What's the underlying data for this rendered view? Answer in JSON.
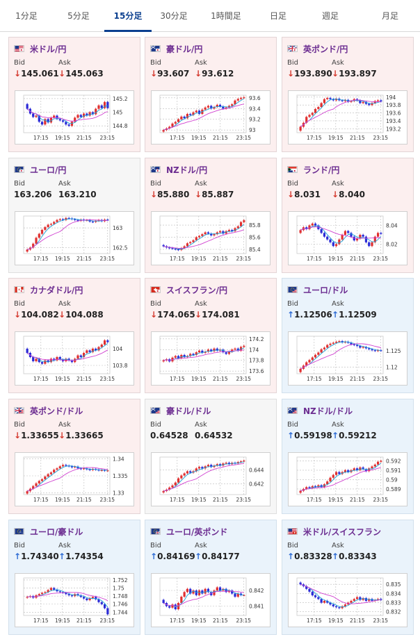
{
  "tabs": [
    {
      "label": "1分足",
      "active": false
    },
    {
      "label": "5分足",
      "active": false
    },
    {
      "label": "15分足",
      "active": true
    },
    {
      "label": "30分足",
      "active": false
    },
    {
      "label": "1時間足",
      "active": false
    },
    {
      "label": "日足",
      "active": false
    },
    {
      "label": "週足",
      "active": false
    },
    {
      "label": "月足",
      "active": false
    }
  ],
  "colors": {
    "down_arrow": "#d43a2f",
    "up_arrow": "#2f6cd4",
    "title": "#6c2d91",
    "candle_up": "#e03030",
    "candle_down": "#2a2ad6",
    "ma_short": "#1da3d6",
    "ma_long": "#d040d0"
  },
  "bid_label": "Bid",
  "ask_label": "Ask",
  "cards": [
    {
      "pair": "米ドル/円",
      "flag": "flag-us-jp",
      "trend": "down",
      "bid": "145.061",
      "ask": "145.063",
      "chart_data": {
        "type": "candlestick",
        "x_ticks": [
          "17:15",
          "19:15",
          "21:15",
          "23:15"
        ],
        "y_ticks": [
          "145.2",
          "145",
          "144.8"
        ],
        "ylim": [
          144.7,
          145.25
        ],
        "close": [
          145.05,
          144.98,
          144.93,
          144.95,
          144.86,
          144.82,
          144.9,
          144.85,
          144.92,
          144.95,
          144.9,
          144.88,
          144.86,
          144.82,
          144.8,
          144.86,
          144.92,
          144.96,
          144.93,
          144.98,
          144.95,
          145.0,
          144.97,
          145.05,
          145.1,
          145.06,
          145.15,
          145.06
        ]
      }
    },
    {
      "pair": "豪ドル/円",
      "flag": "flag-au-jp",
      "trend": "down",
      "bid": "93.607",
      "ask": "93.612",
      "chart_data": {
        "type": "candlestick",
        "x_ticks": [
          "17:15",
          "19:15",
          "21:15",
          "23:15"
        ],
        "y_ticks": [
          "93.6",
          "93.4",
          "93.2",
          "93"
        ],
        "ylim": [
          92.95,
          93.65
        ],
        "close": [
          93.0,
          93.03,
          93.06,
          93.12,
          93.15,
          93.2,
          93.25,
          93.22,
          93.3,
          93.28,
          93.33,
          93.36,
          93.3,
          93.38,
          93.42,
          93.45,
          93.4,
          93.43,
          93.47,
          93.44,
          93.4,
          93.42,
          93.45,
          93.48,
          93.55,
          93.58,
          93.6,
          93.61
        ]
      }
    },
    {
      "pair": "英ポンド/円",
      "flag": "flag-gb-jp",
      "trend": "down",
      "bid": "193.890",
      "ask": "193.897",
      "chart_data": {
        "type": "candlestick",
        "x_ticks": [
          "17:15",
          "19:15",
          "21:15",
          "23:15"
        ],
        "y_ticks": [
          "194",
          "193.8",
          "193.6",
          "193.4",
          "193.2"
        ],
        "ylim": [
          193.1,
          194.05
        ],
        "close": [
          193.25,
          193.35,
          193.5,
          193.55,
          193.6,
          193.7,
          193.75,
          193.85,
          193.95,
          193.98,
          193.95,
          193.92,
          193.96,
          193.92,
          193.9,
          193.93,
          193.88,
          193.9,
          193.95,
          193.92,
          193.85,
          193.88,
          193.83,
          193.8,
          193.85,
          193.9,
          193.92,
          193.89
        ]
      }
    },
    {
      "pair": "ユーロ/円",
      "flag": "flag-eu-jp",
      "trend": "none",
      "bid": "163.206",
      "ask": "163.210",
      "chart_data": {
        "type": "candlestick",
        "x_ticks": [
          "17:15",
          "19:15",
          "21:15",
          "23:15"
        ],
        "y_ticks": [
          "163",
          "162.5"
        ],
        "ylim": [
          162.35,
          163.3
        ],
        "close": [
          162.45,
          162.5,
          162.6,
          162.75,
          162.85,
          162.95,
          163.02,
          163.08,
          163.1,
          163.15,
          163.2,
          163.22,
          163.2,
          163.25,
          163.24,
          163.22,
          163.2,
          163.18,
          163.21,
          163.19,
          163.2,
          163.16,
          163.15,
          163.18,
          163.2,
          163.17,
          163.21,
          163.2
        ]
      }
    },
    {
      "pair": "NZドル/円",
      "flag": "flag-nz-jp",
      "trend": "down",
      "bid": "85.880",
      "ask": "85.887",
      "chart_data": {
        "type": "candlestick",
        "x_ticks": [
          "17:15",
          "19:15",
          "21:15",
          "23:15"
        ],
        "y_ticks": [
          "85.8",
          "85.6",
          "85.4"
        ],
        "ylim": [
          85.33,
          85.95
        ],
        "close": [
          85.45,
          85.43,
          85.42,
          85.41,
          85.4,
          85.39,
          85.42,
          85.45,
          85.5,
          85.52,
          85.55,
          85.6,
          85.62,
          85.65,
          85.68,
          85.66,
          85.63,
          85.65,
          85.68,
          85.7,
          85.66,
          85.7,
          85.72,
          85.7,
          85.75,
          85.78,
          85.85,
          85.88
        ]
      }
    },
    {
      "pair": "ランド/円",
      "flag": "flag-za-jp",
      "trend": "down",
      "bid": "8.031",
      "ask": "8.040",
      "chart_data": {
        "type": "candlestick",
        "x_ticks": [
          "17:15",
          "19:15",
          "21:15",
          "23:15"
        ],
        "y_ticks": [
          "8.04",
          "8.02"
        ],
        "ylim": [
          8.01,
          8.05
        ],
        "close": [
          8.035,
          8.038,
          8.036,
          8.04,
          8.042,
          8.04,
          8.036,
          8.032,
          8.028,
          8.025,
          8.022,
          8.018,
          8.02,
          8.025,
          8.03,
          8.034,
          8.032,
          8.028,
          8.024,
          8.026,
          8.03,
          8.028,
          8.022,
          8.018,
          8.022,
          8.028,
          8.032,
          8.031
        ]
      }
    },
    {
      "pair": "カナダドル/円",
      "flag": "flag-ca-jp",
      "trend": "down",
      "bid": "104.082",
      "ask": "104.088",
      "chart_data": {
        "type": "candlestick",
        "x_ticks": [
          "17:15",
          "19:15",
          "21:15",
          "23:15"
        ],
        "y_ticks": [
          "104",
          "103.8"
        ],
        "ylim": [
          103.7,
          104.15
        ],
        "close": [
          103.95,
          103.9,
          103.85,
          103.88,
          103.84,
          103.82,
          103.86,
          103.84,
          103.88,
          103.86,
          103.9,
          103.87,
          103.85,
          103.88,
          103.86,
          103.84,
          103.88,
          103.92,
          103.9,
          103.95,
          103.98,
          103.96,
          104.0,
          103.98,
          104.02,
          104.05,
          104.1,
          104.08
        ]
      }
    },
    {
      "pair": "スイスフラン/円",
      "flag": "flag-ch-jp",
      "trend": "down",
      "bid": "174.065",
      "ask": "174.081",
      "chart_data": {
        "type": "candlestick",
        "x_ticks": [
          "17:15",
          "19:15",
          "21:15",
          "23:15"
        ],
        "y_ticks": [
          "174.2",
          "174",
          "173.8",
          "173.6"
        ],
        "ylim": [
          173.55,
          174.25
        ],
        "close": [
          173.8,
          173.82,
          173.78,
          173.85,
          173.88,
          173.84,
          173.9,
          173.86,
          173.88,
          173.92,
          173.9,
          173.95,
          173.98,
          173.94,
          173.96,
          174.0,
          173.97,
          174.02,
          173.98,
          174.0,
          173.95,
          173.92,
          173.96,
          174.0,
          174.02,
          173.98,
          174.05,
          174.07
        ]
      }
    },
    {
      "pair": "ユーロ/ドル",
      "flag": "flag-eu-us",
      "trend": "up",
      "bid": "1.12506",
      "ask": "1.12509",
      "chart_data": {
        "type": "candlestick",
        "x_ticks": [
          "17:15",
          "19:15",
          "21:15",
          "23:15"
        ],
        "y_ticks": [
          "1.125",
          "1.12"
        ],
        "ylim": [
          1.118,
          1.1295
        ],
        "close": [
          1.1195,
          1.1205,
          1.1215,
          1.1222,
          1.123,
          1.1238,
          1.1245,
          1.1255,
          1.126,
          1.1268,
          1.1272,
          1.1275,
          1.1278,
          1.128,
          1.1276,
          1.1278,
          1.1275,
          1.127,
          1.1268,
          1.1265,
          1.126,
          1.1262,
          1.1258,
          1.1255,
          1.1252,
          1.125,
          1.1252,
          1.1251
        ]
      }
    },
    {
      "pair": "英ポンド/ドル",
      "flag": "flag-gb-us",
      "trend": "down",
      "bid": "1.33655",
      "ask": "1.33665",
      "chart_data": {
        "type": "candlestick",
        "x_ticks": [
          "17:15",
          "19:15",
          "21:15",
          "23:15"
        ],
        "y_ticks": [
          "1.34",
          "1.335",
          "1.33"
        ],
        "ylim": [
          1.3295,
          1.3405
        ],
        "close": [
          1.3305,
          1.3312,
          1.332,
          1.3328,
          1.3335,
          1.334,
          1.3348,
          1.3355,
          1.336,
          1.3368,
          1.3372,
          1.3378,
          1.3382,
          1.338,
          1.3378,
          1.3375,
          1.3377,
          1.3372,
          1.337,
          1.3372,
          1.3369,
          1.3367,
          1.337,
          1.3368,
          1.3366,
          1.3367,
          1.3365,
          1.3366
        ]
      }
    },
    {
      "pair": "豪ドル/ドル",
      "flag": "flag-au-us",
      "trend": "none",
      "bid": "0.64528",
      "ask": "0.64532",
      "chart_data": {
        "type": "candlestick",
        "x_ticks": [
          "17:15",
          "19:15",
          "21:15",
          "23:15"
        ],
        "y_ticks": [
          "0.644",
          "0.642"
        ],
        "ylim": [
          0.6405,
          0.6458
        ],
        "close": [
          0.641,
          0.6412,
          0.6415,
          0.6418,
          0.6422,
          0.6428,
          0.6432,
          0.6435,
          0.6438,
          0.6436,
          0.6438,
          0.6442,
          0.6444,
          0.6442,
          0.6445,
          0.6447,
          0.6444,
          0.6446,
          0.6448,
          0.6446,
          0.6449,
          0.645,
          0.6448,
          0.645,
          0.6449,
          0.6451,
          0.6452,
          0.6453
        ]
      }
    },
    {
      "pair": "NZドル/ドル",
      "flag": "flag-nz-us",
      "trend": "up",
      "bid": "0.59198",
      "ask": "0.59212",
      "chart_data": {
        "type": "candlestick",
        "x_ticks": [
          "17:15",
          "19:15",
          "21:15",
          "23:15"
        ],
        "y_ticks": [
          "0.592",
          "0.591",
          "0.59",
          "0.589"
        ],
        "ylim": [
          0.5884,
          0.5924
        ],
        "close": [
          0.5888,
          0.589,
          0.5892,
          0.5891,
          0.5893,
          0.5892,
          0.5894,
          0.5892,
          0.5895,
          0.5898,
          0.5902,
          0.5905,
          0.5908,
          0.5906,
          0.5908,
          0.591,
          0.5908,
          0.591,
          0.5912,
          0.591,
          0.5913,
          0.5911,
          0.5909,
          0.5912,
          0.5914,
          0.5916,
          0.5919,
          0.592
        ]
      }
    },
    {
      "pair": "ユーロ/豪ドル",
      "flag": "flag-eu-au",
      "trend": "up",
      "bid": "1.74340",
      "ask": "1.74354",
      "chart_data": {
        "type": "candlestick",
        "x_ticks": [
          "17:15",
          "19:15",
          "21:15",
          "23:15"
        ],
        "y_ticks": [
          "1.752",
          "1.75",
          "1.748",
          "1.746",
          "1.744"
        ],
        "ylim": [
          1.7432,
          1.7525
        ],
        "close": [
          1.7478,
          1.748,
          1.7476,
          1.7482,
          1.7485,
          1.7488,
          1.749,
          1.7495,
          1.75,
          1.7496,
          1.7492,
          1.749,
          1.7488,
          1.7485,
          1.7482,
          1.748,
          1.7485,
          1.7482,
          1.7478,
          1.7474,
          1.747,
          1.7475,
          1.7478,
          1.7472,
          1.7465,
          1.746,
          1.745,
          1.7435
        ]
      }
    },
    {
      "pair": "ユーロ/英ポンド",
      "flag": "flag-eu-gb",
      "trend": "up",
      "bid": "0.84169",
      "ask": "0.84177",
      "chart_data": {
        "type": "candlestick",
        "x_ticks": [
          "17:15",
          "19:15",
          "21:15",
          "23:15"
        ],
        "y_ticks": [
          "0.842",
          "0.841"
        ],
        "ylim": [
          0.8404,
          0.8428
        ],
        "close": [
          0.8412,
          0.841,
          0.8409,
          0.8411,
          0.8408,
          0.8412,
          0.8416,
          0.8419,
          0.8421,
          0.8418,
          0.842,
          0.8417,
          0.842,
          0.8418,
          0.8421,
          0.8419,
          0.8417,
          0.842,
          0.8422,
          0.842,
          0.8421,
          0.8419,
          0.842,
          0.8418,
          0.8416,
          0.8418,
          0.8417,
          0.8417
        ]
      }
    },
    {
      "pair": "米ドル/スイスフラン",
      "flag": "flag-us-ch",
      "trend": "up",
      "bid": "0.83328",
      "ask": "0.83343",
      "chart_data": {
        "type": "candlestick",
        "x_ticks": [
          "17:15",
          "19:15",
          "21:15",
          "23:15"
        ],
        "y_ticks": [
          "0.835",
          "0.834",
          "0.833",
          "0.832"
        ],
        "ylim": [
          0.8316,
          0.8357
        ],
        "close": [
          0.835,
          0.8348,
          0.8345,
          0.8342,
          0.8338,
          0.8336,
          0.8334,
          0.833,
          0.8332,
          0.833,
          0.8328,
          0.8326,
          0.8325,
          0.8324,
          0.8326,
          0.8328,
          0.833,
          0.8332,
          0.8334,
          0.8336,
          0.8333,
          0.8335,
          0.8332,
          0.8334,
          0.8332,
          0.8333,
          0.8334,
          0.8333
        ]
      }
    }
  ]
}
